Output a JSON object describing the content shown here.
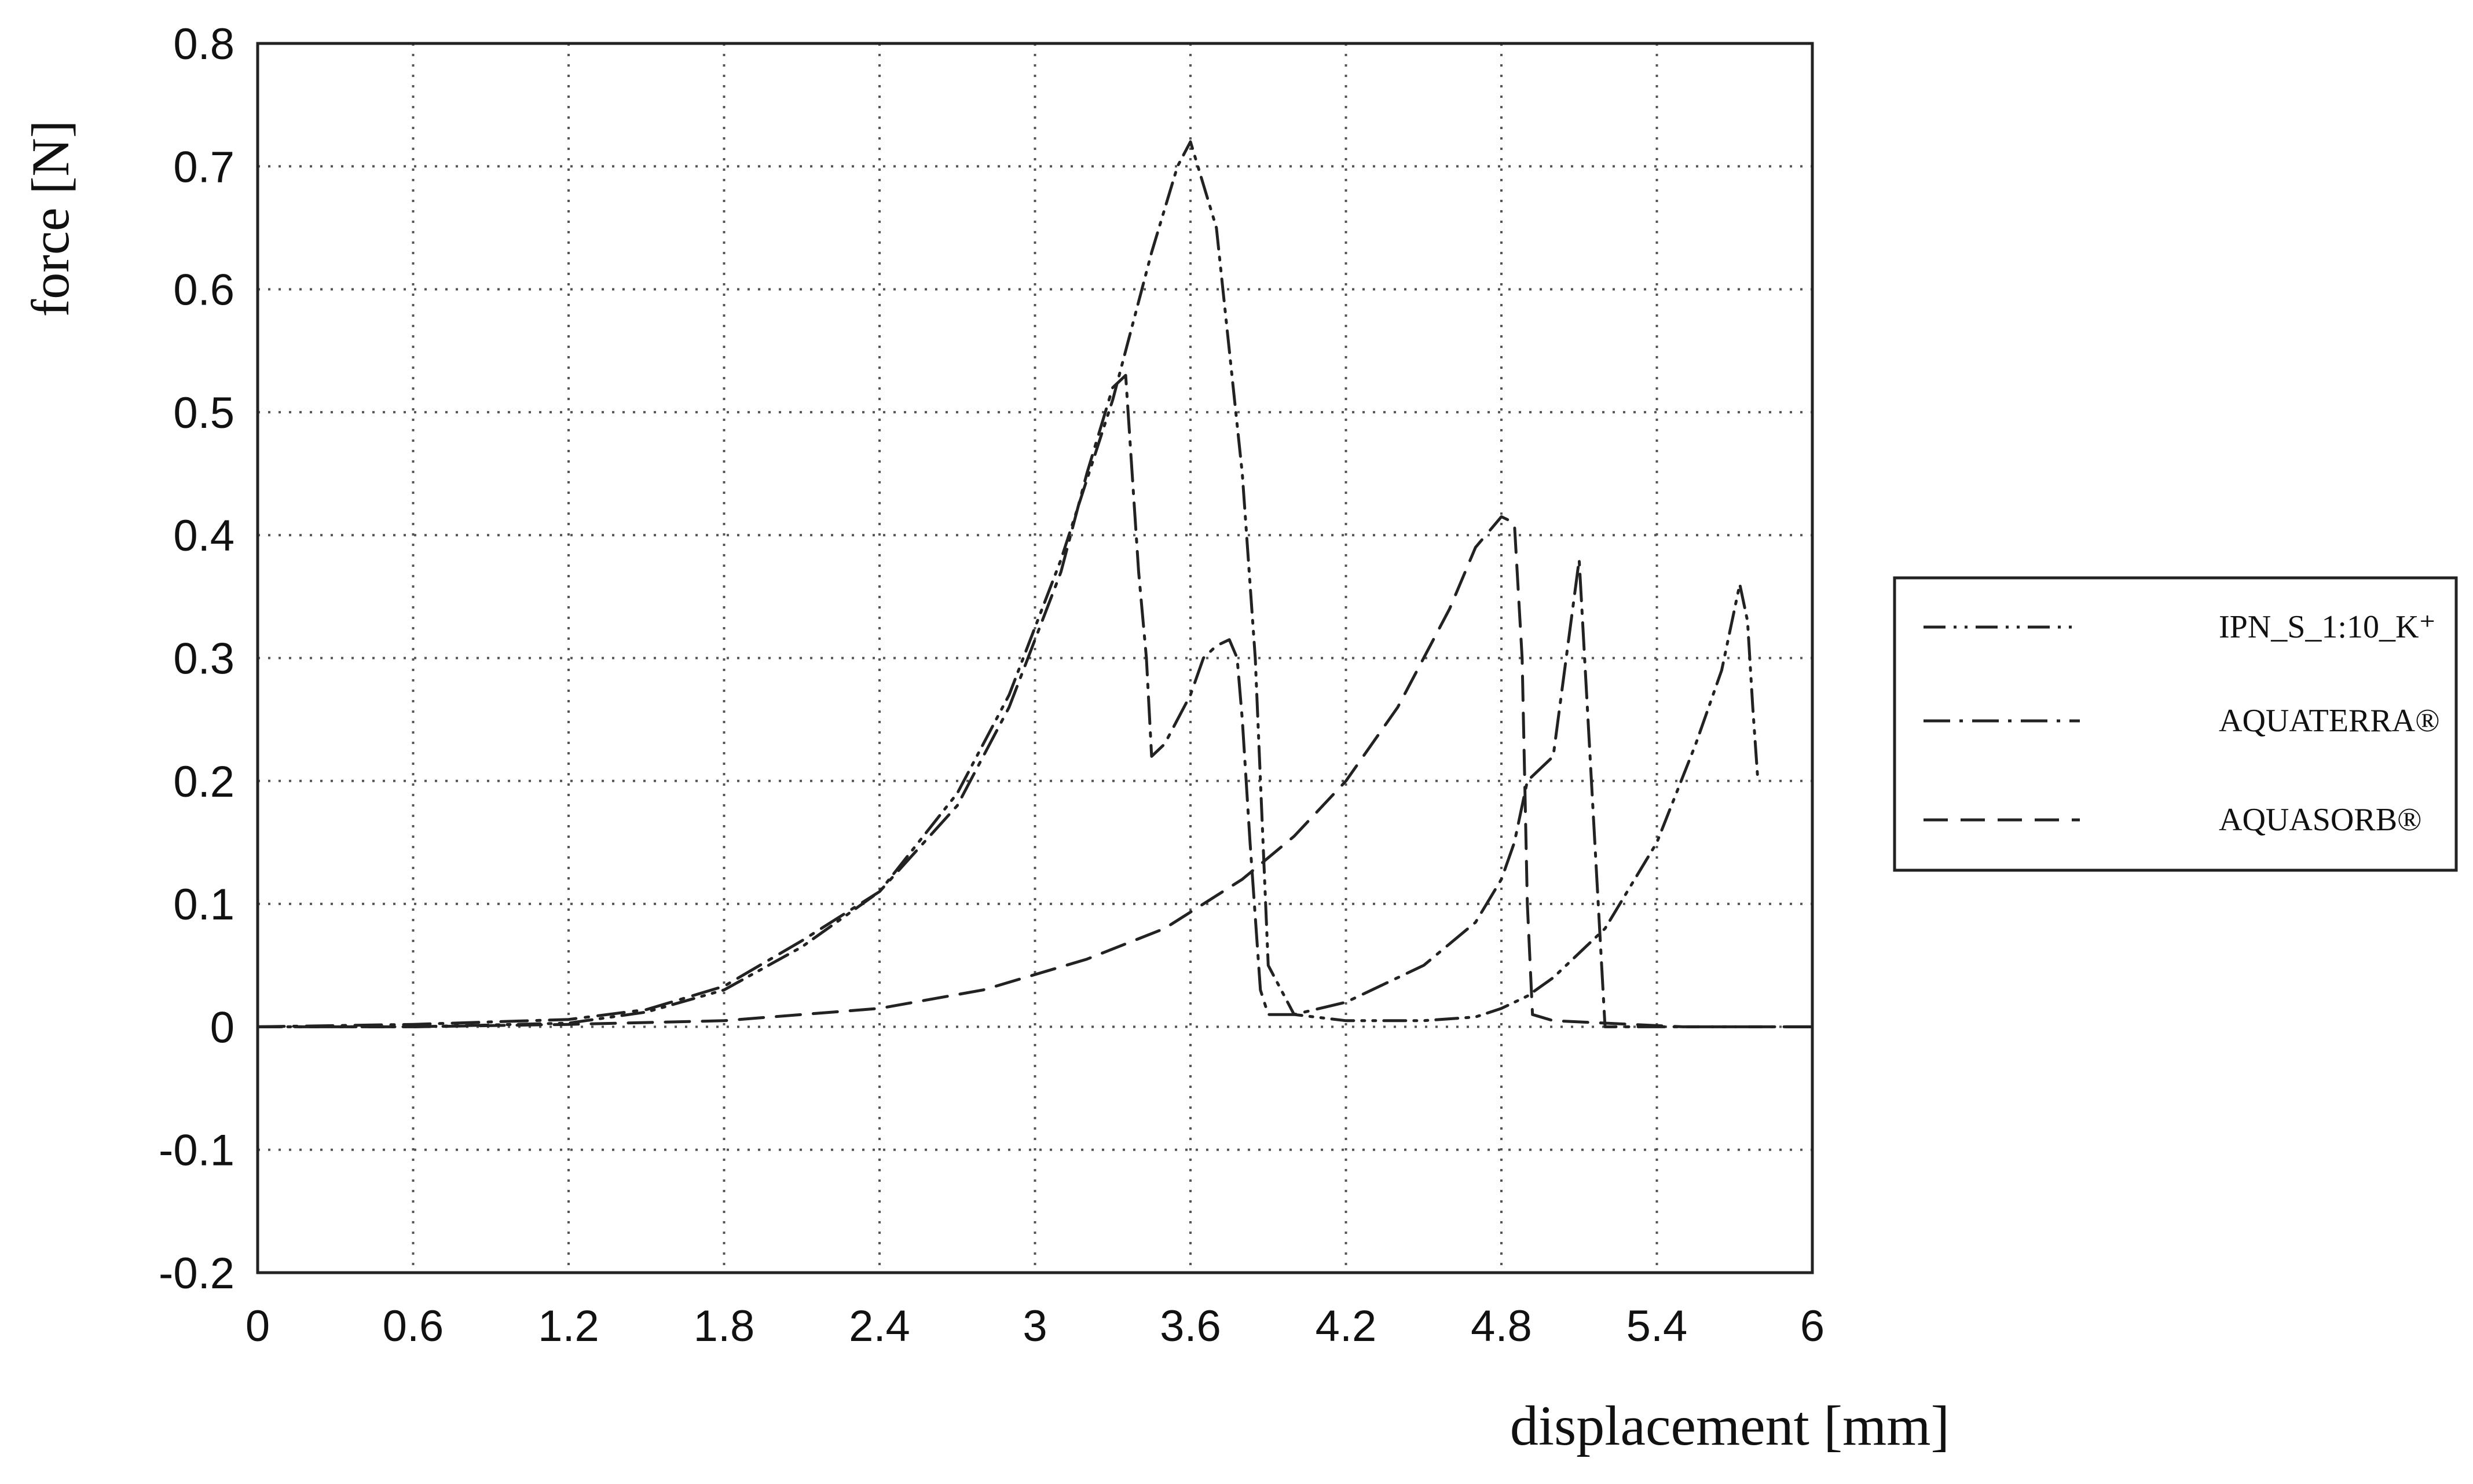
{
  "chart_data": {
    "type": "line",
    "xlabel": "displacement [mm]",
    "ylabel": "force [N]",
    "xlim": [
      0,
      6
    ],
    "ylim": [
      -0.2,
      0.8
    ],
    "x_ticks": [
      "0",
      "0.6",
      "1.2",
      "1.8",
      "2.4",
      "3",
      "3.6",
      "4.2",
      "4.8",
      "5.4",
      "6"
    ],
    "y_ticks": [
      "0.8",
      "0.7",
      "0.6",
      "0.5",
      "0.4",
      "0.3",
      "0.2",
      "0.1",
      "0",
      "-0.1",
      "-0.2"
    ],
    "grid": true,
    "legend_position": "right",
    "series": [
      {
        "name": "IPN_S_1:10_K⁺",
        "dash": "dash-dot-dot",
        "x": [
          0,
          0.6,
          1.2,
          1.5,
          1.8,
          2.1,
          2.4,
          2.7,
          2.9,
          3.1,
          3.3,
          3.45,
          3.55,
          3.6,
          3.7,
          3.8,
          3.85,
          3.9,
          4.0,
          4.2,
          4.5,
          4.7,
          4.8,
          4.9,
          5.0,
          5.2,
          5.4,
          5.55,
          5.65,
          5.72,
          5.75,
          5.77,
          5.79
        ],
        "y": [
          0.0,
          0.0,
          0.003,
          0.012,
          0.03,
          0.065,
          0.11,
          0.19,
          0.27,
          0.38,
          0.51,
          0.63,
          0.7,
          0.72,
          0.65,
          0.45,
          0.3,
          0.05,
          0.01,
          0.005,
          0.005,
          0.008,
          0.015,
          0.025,
          0.04,
          0.08,
          0.15,
          0.23,
          0.29,
          0.36,
          0.33,
          0.26,
          0.2
        ]
      },
      {
        "name": "AQUATERRA®",
        "dash": "long-dash-dot",
        "x": [
          0,
          0.6,
          1.2,
          1.5,
          1.8,
          2.1,
          2.4,
          2.7,
          2.9,
          3.1,
          3.2,
          3.3,
          3.35,
          3.4,
          3.43,
          3.45,
          3.5,
          3.55,
          3.6,
          3.65,
          3.7,
          3.75,
          3.78,
          3.8,
          3.83,
          3.87,
          3.9,
          4.0,
          4.2,
          4.5,
          4.7,
          4.8,
          4.85,
          4.9,
          5.0,
          5.1,
          5.2,
          5.5,
          6.0
        ],
        "y": [
          0.0,
          0.002,
          0.006,
          0.014,
          0.033,
          0.07,
          0.11,
          0.18,
          0.26,
          0.37,
          0.45,
          0.52,
          0.53,
          0.37,
          0.3,
          0.22,
          0.23,
          0.25,
          0.27,
          0.3,
          0.31,
          0.315,
          0.3,
          0.25,
          0.15,
          0.03,
          0.01,
          0.01,
          0.02,
          0.05,
          0.085,
          0.12,
          0.15,
          0.2,
          0.22,
          0.38,
          0.0,
          0.0,
          0.0
        ]
      },
      {
        "name": "AQUASORB®",
        "dash": "long-dash",
        "x": [
          0,
          0.6,
          1.2,
          1.8,
          2.4,
          2.8,
          3.2,
          3.5,
          3.8,
          4.0,
          4.2,
          4.4,
          4.6,
          4.7,
          4.8,
          4.85,
          4.88,
          4.9,
          4.92,
          5.0,
          5.5,
          6.0
        ],
        "y": [
          0.0,
          0.0,
          0.002,
          0.005,
          0.015,
          0.03,
          0.055,
          0.08,
          0.12,
          0.155,
          0.2,
          0.26,
          0.34,
          0.39,
          0.415,
          0.41,
          0.3,
          0.1,
          0.01,
          0.005,
          0.0,
          0.0
        ]
      }
    ]
  }
}
